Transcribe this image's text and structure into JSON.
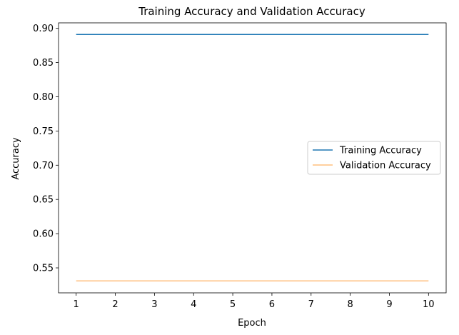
{
  "chart_data": {
    "type": "line",
    "title": "Training Accuracy and Validation Accuracy",
    "xlabel": "Epoch",
    "ylabel": "Accuracy",
    "x": [
      1,
      2,
      3,
      4,
      5,
      6,
      7,
      8,
      9,
      10
    ],
    "xticks": [
      "1",
      "2",
      "3",
      "4",
      "5",
      "6",
      "7",
      "8",
      "9",
      "10"
    ],
    "yticks": [
      "0.55",
      "0.60",
      "0.65",
      "0.70",
      "0.75",
      "0.80",
      "0.85",
      "0.90"
    ],
    "xlim": [
      0.55,
      10.45
    ],
    "ylim": [
      0.5135,
      0.908
    ],
    "grid": false,
    "legend_position": "center-right",
    "series": [
      {
        "name": "Training Accuracy",
        "color": "#1f77b4",
        "values": [
          0.891,
          0.891,
          0.891,
          0.891,
          0.891,
          0.891,
          0.891,
          0.891,
          0.891,
          0.891
        ]
      },
      {
        "name": "Validation Accuracy",
        "color": "#ffbf7f",
        "values": [
          0.531,
          0.531,
          0.531,
          0.531,
          0.531,
          0.531,
          0.531,
          0.531,
          0.531,
          0.531
        ]
      }
    ]
  }
}
